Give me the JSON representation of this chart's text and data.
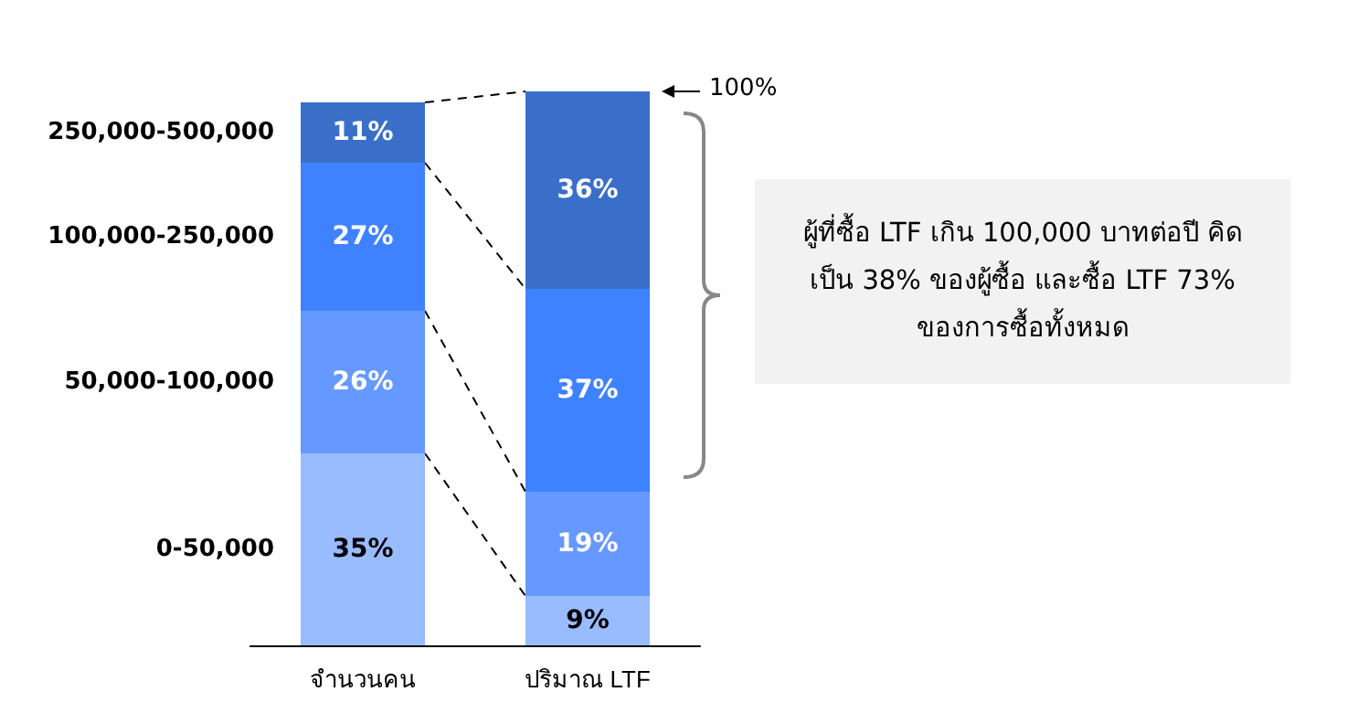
{
  "chart_data": {
    "type": "bar",
    "stacked": true,
    "categories": [
      "จำนวนคน",
      "ปริมาณ LTF"
    ],
    "series": [
      {
        "name": "0-50,000",
        "color": "#99bbff",
        "values": [
          35,
          9
        ],
        "value_labels": [
          "35%",
          "9%"
        ]
      },
      {
        "name": "50,000-100,000",
        "color": "#6699ff",
        "values": [
          26,
          19
        ],
        "value_labels": [
          "26%",
          "19%"
        ]
      },
      {
        "name": "100,000-250,000",
        "color": "#3f82ff",
        "values": [
          27,
          37
        ],
        "value_labels": [
          "27%",
          "37%"
        ]
      },
      {
        "name": "250,000-500,000",
        "color": "#3a6fc9",
        "values": [
          11,
          36
        ],
        "value_labels": [
          "11%",
          "36%"
        ]
      }
    ],
    "annotations": [
      "100%",
      "ผู้ที่ซื้อ LTF เกิน 100,000 บาทต่อปี คิดเป็น 38% ของผู้ซื้อ และซื้อ LTF 73% ของการซื้อทั้งหมด"
    ]
  }
}
